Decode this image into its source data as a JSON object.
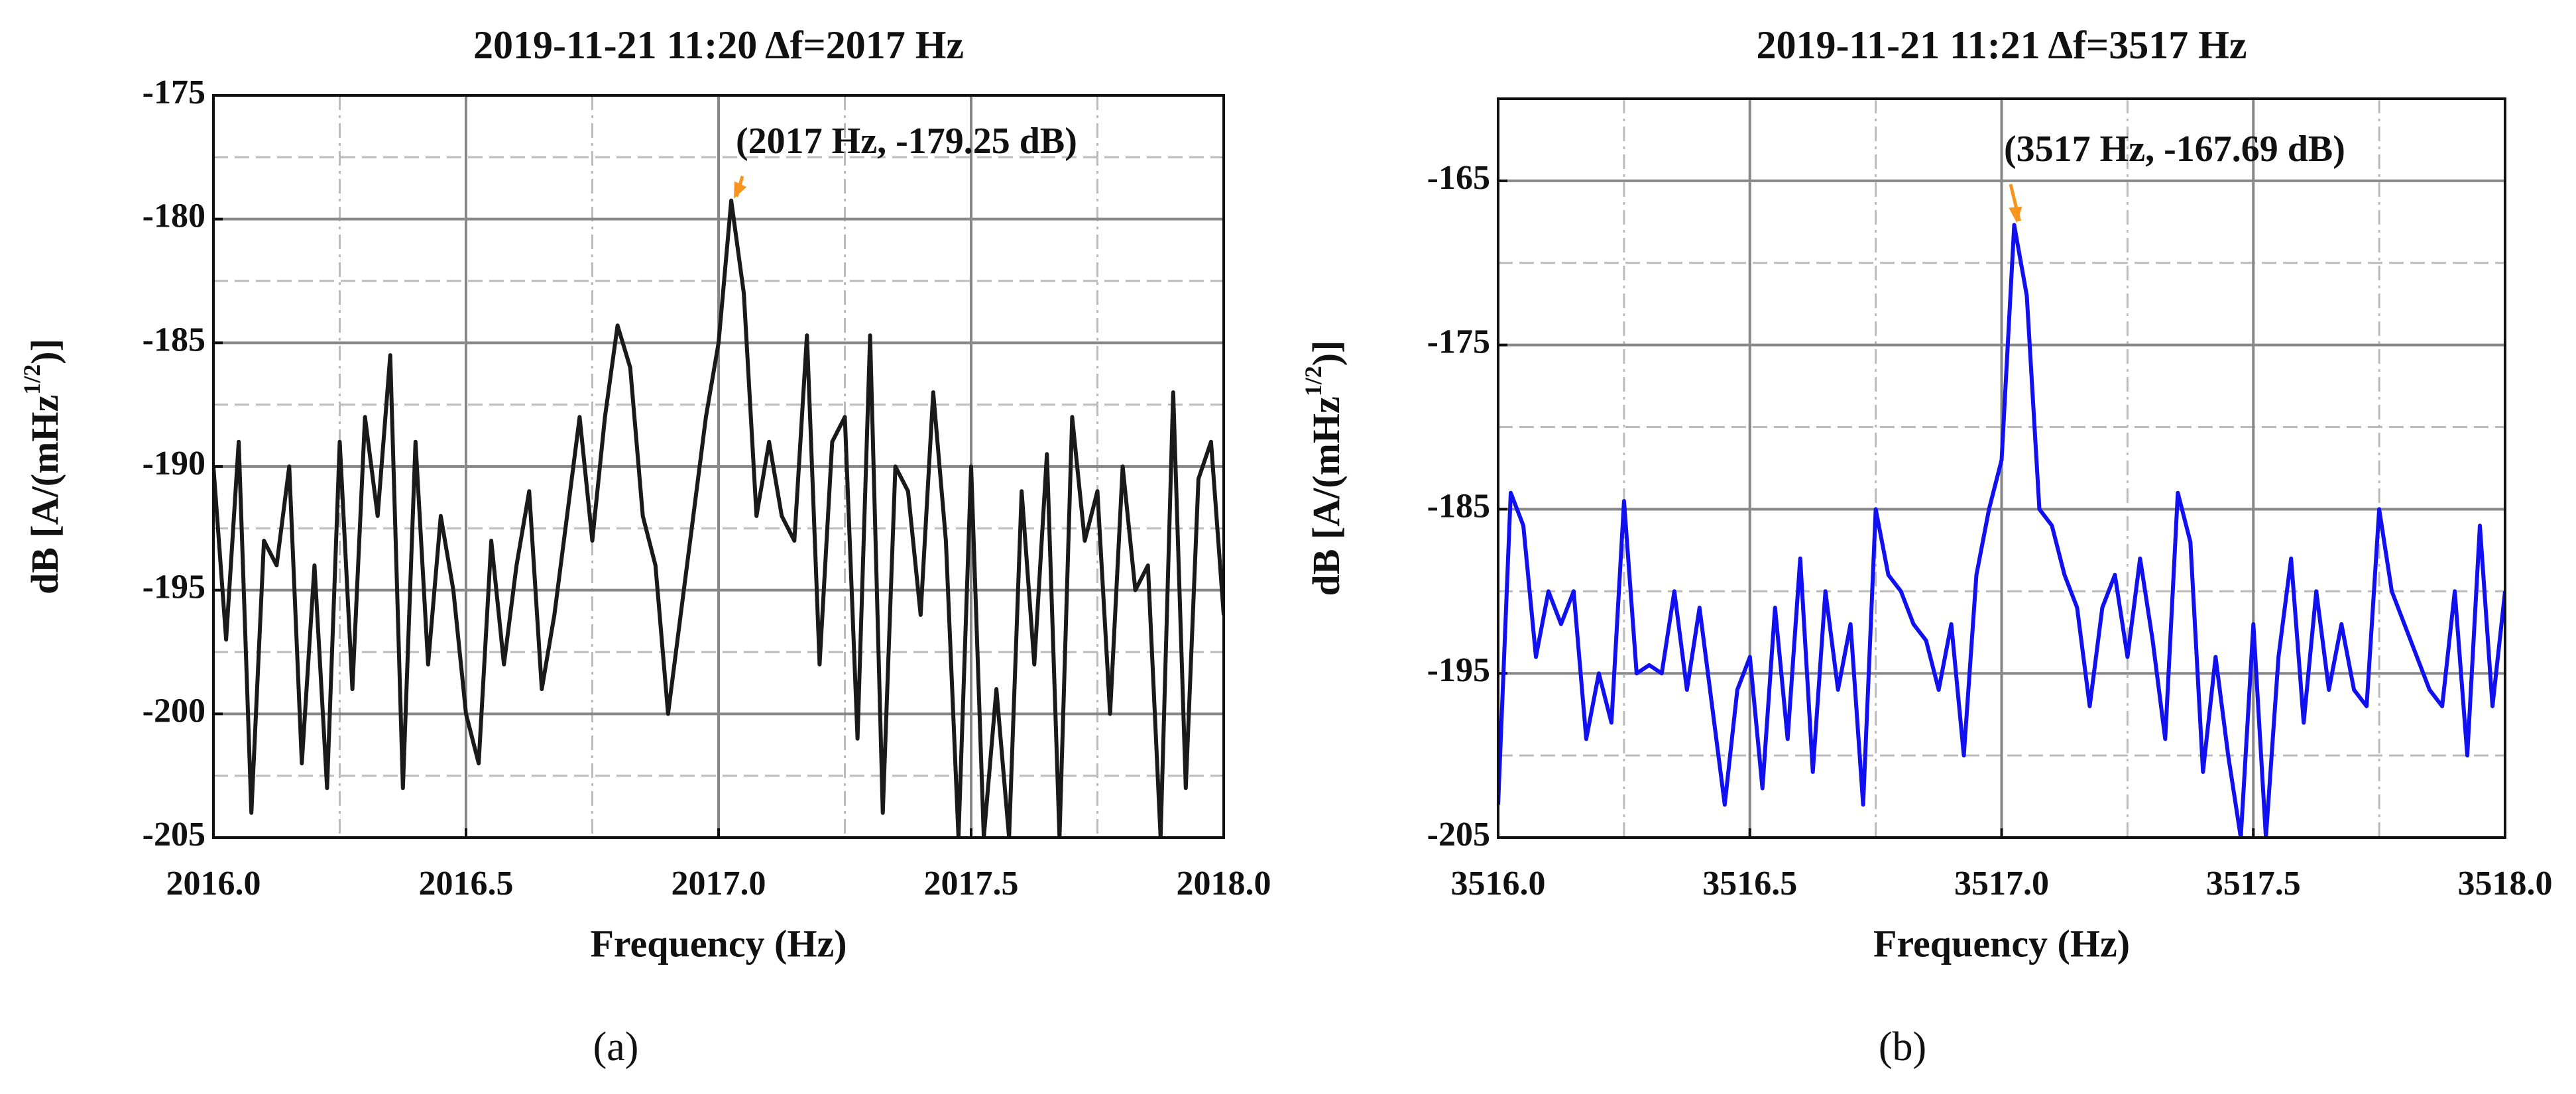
{
  "chart_data": [
    {
      "type": "line",
      "title": "2019-11-21 11:20 Δf=2017 Hz",
      "panel_label": "(a)",
      "xlabel": "Frequency (Hz)",
      "ylabel": [
        "dB [A/(mHz",
        "1/2",
        ")]"
      ],
      "color": "#1a1a1a",
      "x": [
        2016.0,
        2016.025,
        2016.05,
        2016.075,
        2016.1,
        2016.125,
        2016.15,
        2016.175,
        2016.2,
        2016.225,
        2016.25,
        2016.275,
        2016.3,
        2016.325,
        2016.35,
        2016.375,
        2016.4,
        2016.425,
        2016.45,
        2016.475,
        2016.5,
        2016.525,
        2016.55,
        2016.575,
        2016.6,
        2016.625,
        2016.65,
        2016.675,
        2016.7,
        2016.725,
        2016.75,
        2016.775,
        2016.8,
        2016.825,
        2016.85,
        2016.875,
        2016.9,
        2016.925,
        2016.95,
        2016.975,
        2017.0,
        2017.025,
        2017.05,
        2017.075,
        2017.1,
        2017.125,
        2017.15,
        2017.175,
        2017.2,
        2017.225,
        2017.25,
        2017.275,
        2017.3,
        2017.325,
        2017.35,
        2017.375,
        2017.4,
        2017.425,
        2017.45,
        2017.475,
        2017.5,
        2017.525,
        2017.55,
        2017.575,
        2017.6,
        2017.625,
        2017.65,
        2017.675,
        2017.7,
        2017.725,
        2017.75,
        2017.775,
        2017.8,
        2017.825,
        2017.85,
        2017.875,
        2017.9,
        2017.925,
        2017.95,
        2017.975,
        2018.0
      ],
      "values": [
        -190,
        -197,
        -189,
        -204,
        -193,
        -194,
        -190,
        -202,
        -194,
        -203,
        -189,
        -199,
        -188,
        -192,
        -185.5,
        -203,
        -189,
        -198,
        -192,
        -195,
        -200,
        -202,
        -193,
        -198,
        -194,
        -191,
        -199,
        -196,
        -192,
        -188,
        -193,
        -188,
        -184.3,
        -186,
        -192,
        -194,
        -200,
        -196,
        -192,
        -188,
        -185,
        -179.25,
        -183,
        -192,
        -189,
        -192,
        -193,
        -184.7,
        -198,
        -189,
        -188,
        -201,
        -184.7,
        -204,
        -190,
        -191,
        -196,
        -187,
        -193,
        -205,
        -190,
        -205,
        -199,
        -205,
        -191,
        -198,
        -189.5,
        -205,
        -188,
        -193,
        -191,
        -200,
        -190,
        -195,
        -194,
        -205,
        -187,
        -203,
        -190.5,
        -189,
        -196
      ],
      "xlim": [
        2016,
        2018
      ],
      "xticks": [
        {
          "value": 2016,
          "label": "2016.0"
        },
        2016.5,
        {
          "value": 2017,
          "label": "2017.0"
        },
        2017.5,
        {
          "value": 2018,
          "label": "2018.0"
        }
      ],
      "minor_xticks": [
        2016.25,
        2016.75,
        2017.25,
        2017.75
      ],
      "ylim": [
        -205,
        -175
      ],
      "yticks": [
        -205,
        -200,
        -195,
        -190,
        -185,
        -180,
        -175
      ],
      "minor_yticks": [
        -202.5,
        -197.5,
        -192.5,
        -187.5,
        -182.5,
        -177.5
      ],
      "grid": true,
      "annotation": {
        "text": "(2017 Hz, -179.25 dB)",
        "x": 2017.025,
        "y": -179.25,
        "color": "#f7941d"
      }
    },
    {
      "type": "line",
      "title": "2019-11-21 11:21 Δf=3517 Hz",
      "panel_label": "(b)",
      "xlabel": "Frequency (Hz)",
      "ylabel": [
        "dB [A/(mHz",
        "1/2",
        ")]"
      ],
      "color": "#1010f0",
      "x": [
        3516.0,
        3516.025,
        3516.05,
        3516.075,
        3516.1,
        3516.125,
        3516.15,
        3516.175,
        3516.2,
        3516.225,
        3516.25,
        3516.275,
        3516.3,
        3516.325,
        3516.35,
        3516.375,
        3516.4,
        3516.425,
        3516.45,
        3516.475,
        3516.5,
        3516.525,
        3516.55,
        3516.575,
        3516.6,
        3516.625,
        3516.65,
        3516.675,
        3516.7,
        3516.725,
        3516.75,
        3516.775,
        3516.8,
        3516.825,
        3516.85,
        3516.875,
        3516.9,
        3516.925,
        3516.95,
        3516.975,
        3517.0,
        3517.025,
        3517.05,
        3517.075,
        3517.1,
        3517.125,
        3517.15,
        3517.175,
        3517.2,
        3517.225,
        3517.25,
        3517.275,
        3517.3,
        3517.325,
        3517.35,
        3517.375,
        3517.4,
        3517.425,
        3517.45,
        3517.475,
        3517.5,
        3517.525,
        3517.55,
        3517.575,
        3517.6,
        3517.625,
        3517.65,
        3517.675,
        3517.7,
        3517.725,
        3517.75,
        3517.775,
        3517.8,
        3517.825,
        3517.85,
        3517.875,
        3517.9,
        3517.925,
        3517.95,
        3517.975,
        3518.0
      ],
      "values": [
        -203,
        -184,
        -186,
        -194,
        -190,
        -192,
        -190,
        -199,
        -195,
        -198,
        -184.5,
        -195,
        -194.5,
        -195,
        -190,
        -196,
        -191,
        -197,
        -203,
        -196,
        -194,
        -202,
        -191,
        -199,
        -188,
        -201,
        -190,
        -196,
        -192,
        -203,
        -185,
        -189,
        -190,
        -192,
        -193,
        -196,
        -192,
        -200,
        -189,
        -185,
        -182,
        -167.69,
        -172,
        -185,
        -186,
        -189,
        -191,
        -197,
        -191,
        -189,
        -194,
        -188,
        -193,
        -199,
        -184,
        -187,
        -201,
        -194,
        -200,
        -205,
        -192,
        -205,
        -194,
        -188,
        -198,
        -190,
        -196,
        -192,
        -196,
        -197,
        -185,
        -190,
        -192,
        -194,
        -196,
        -197,
        -190,
        -200,
        -186,
        -197,
        -190
      ],
      "xlim": [
        3516,
        3518
      ],
      "xticks": [
        {
          "value": 3516,
          "label": "3516.0"
        },
        3516.5,
        {
          "value": 3517,
          "label": "3517.0"
        },
        3517.5,
        {
          "value": 3518,
          "label": "3518.0"
        }
      ],
      "minor_xticks": [
        3516.25,
        3516.75,
        3517.25,
        3517.75
      ],
      "ylim": [
        -205,
        -160
      ],
      "yticks": [
        -205,
        -195,
        -185,
        -175,
        -165
      ],
      "minor_yticks": [
        -200,
        -190,
        -180,
        -170
      ],
      "grid": true,
      "annotation": {
        "text": "(3517 Hz, -167.69 dB)",
        "x": 3517.025,
        "y": -167.69,
        "color": "#f7941d"
      }
    }
  ]
}
